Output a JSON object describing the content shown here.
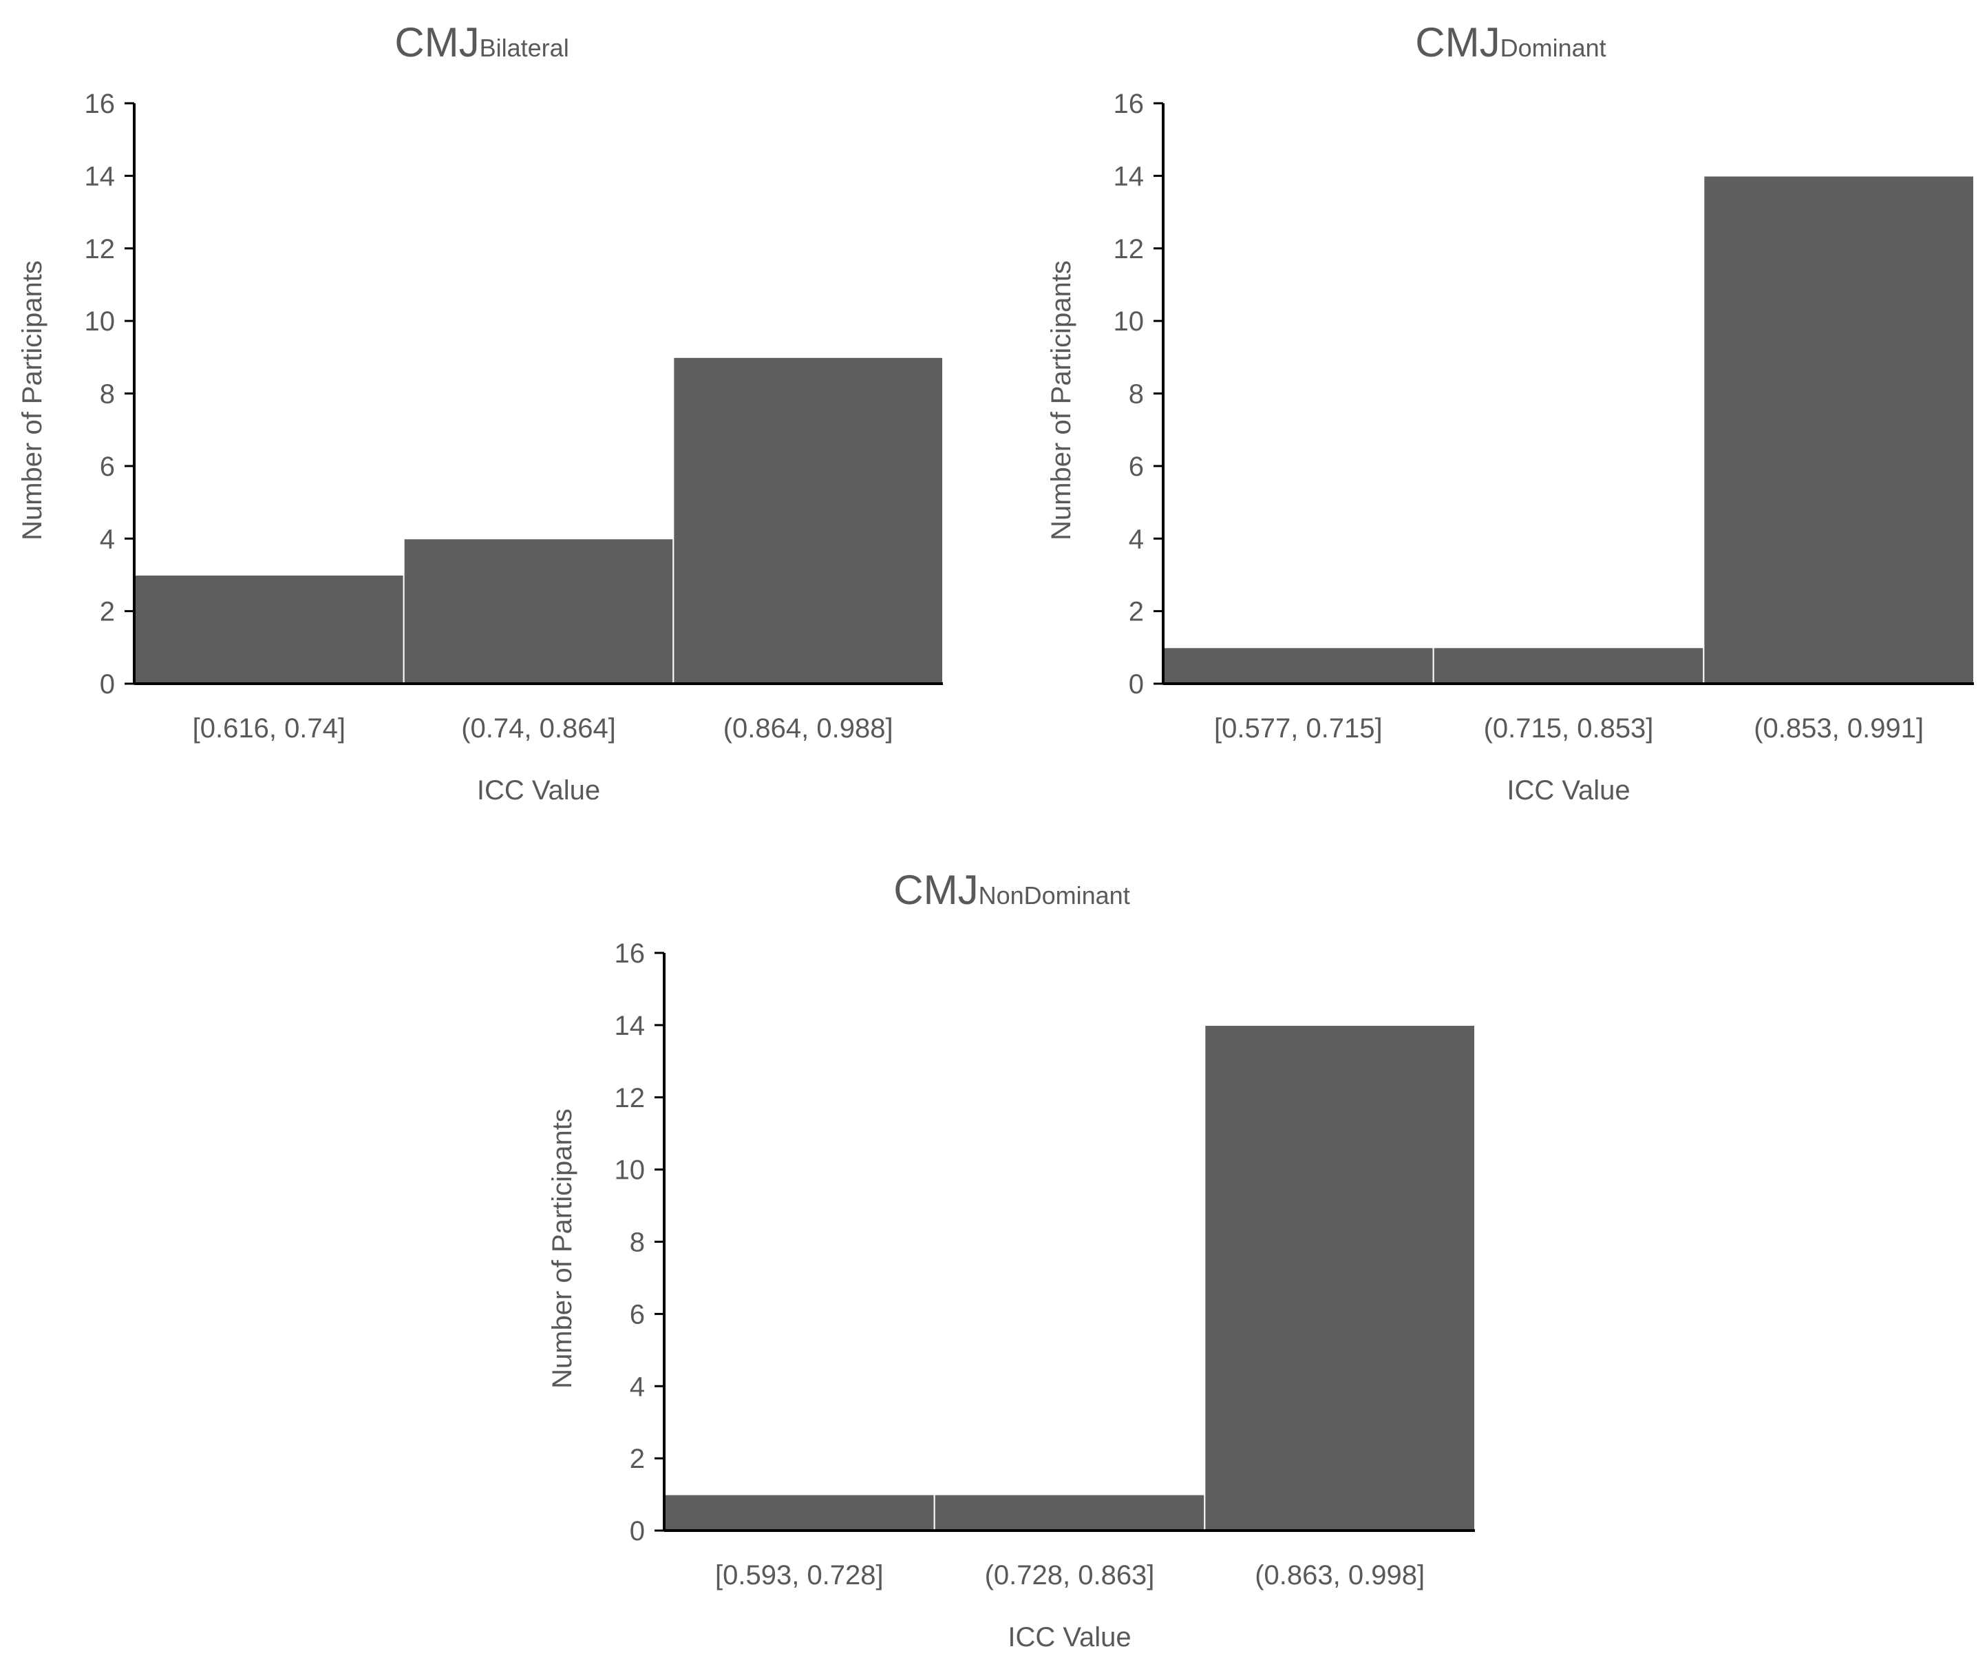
{
  "chart_data": [
    {
      "type": "bar",
      "title": "CMJ",
      "title_subscript": "Bilateral",
      "categories": [
        "[0.616, 0.74]",
        "(0.74, 0.864]",
        "(0.864, 0.988]"
      ],
      "values": [
        3,
        4,
        9
      ],
      "xlabel": "ICC Value",
      "ylabel": "Number of Participants",
      "ylim": [
        0,
        16
      ],
      "yticks": [
        "0",
        "2",
        "4",
        "6",
        "8",
        "10",
        "12",
        "14",
        "16"
      ],
      "grid": false,
      "legend": "none"
    },
    {
      "type": "bar",
      "title": "CMJ",
      "title_subscript": "Dominant",
      "categories": [
        "[0.577, 0.715]",
        "(0.715, 0.853]",
        "(0.853, 0.991]"
      ],
      "values": [
        1,
        1,
        14
      ],
      "xlabel": "ICC Value",
      "ylabel": "Number of Participants",
      "ylim": [
        0,
        16
      ],
      "yticks": [
        "0",
        "2",
        "4",
        "6",
        "8",
        "10",
        "12",
        "14",
        "16"
      ],
      "grid": false,
      "legend": "none"
    },
    {
      "type": "bar",
      "title": "CMJ",
      "title_subscript": "NonDominant",
      "categories": [
        "[0.593, 0.728]",
        "(0.728, 0.863]",
        "(0.863, 0.998]"
      ],
      "values": [
        1,
        1,
        14
      ],
      "xlabel": "ICC Value",
      "ylabel": "Number of Participants",
      "ylim": [
        0,
        16
      ],
      "yticks": [
        "0",
        "2",
        "4",
        "6",
        "8",
        "10",
        "12",
        "14",
        "16"
      ],
      "grid": false,
      "legend": "none"
    }
  ],
  "colors": {
    "bar": "#5e5e5e",
    "bar_edge": "#ffffff",
    "axis": "#000000",
    "text": "#595959"
  }
}
